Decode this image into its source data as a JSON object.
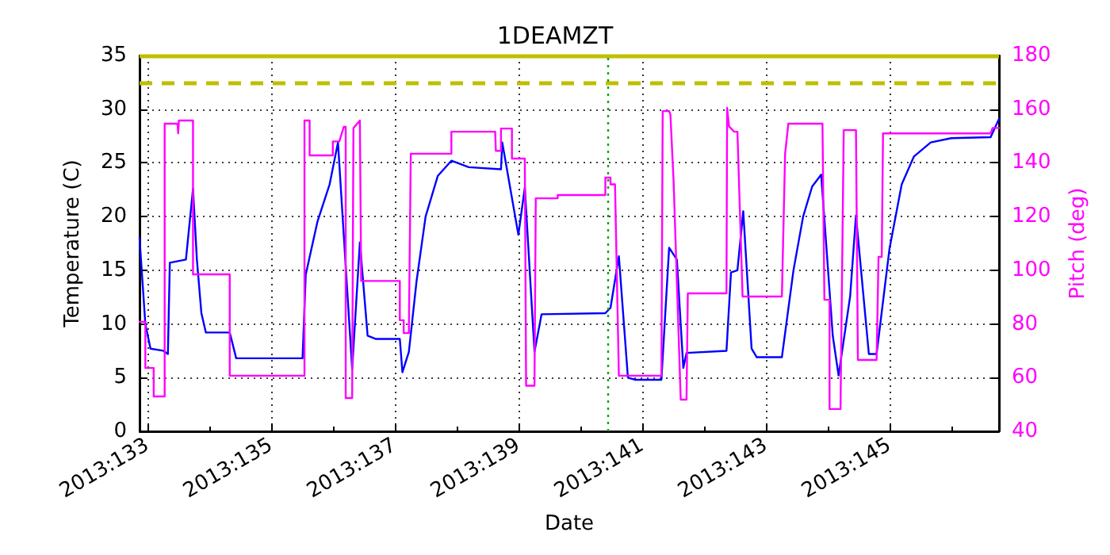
{
  "chart_data": {
    "type": "line",
    "title": "1DEAMZT",
    "xlabel": "Date",
    "ylabel": "Temperature (C)",
    "y2label": "Pitch (deg)",
    "xlim": [
      "2013-05-12T21:00",
      "2013-05-26T18:30"
    ],
    "xticks": [
      {
        "value": "2013-05-13",
        "label": "2013:133"
      },
      {
        "value": "2013-05-14",
        "label": null
      },
      {
        "value": "2013-05-15",
        "label": "2013:135"
      },
      {
        "value": "2013-05-16",
        "label": null
      },
      {
        "value": "2013-05-17",
        "label": "2013:137"
      },
      {
        "value": "2013-05-18",
        "label": null
      },
      {
        "value": "2013-05-19",
        "label": "2013:139"
      },
      {
        "value": "2013-05-20",
        "label": null
      },
      {
        "value": "2013-05-21",
        "label": "2013:141"
      },
      {
        "value": "2013-05-22",
        "label": null
      },
      {
        "value": "2013-05-23",
        "label": "2013:143"
      },
      {
        "value": "2013-05-24",
        "label": null
      },
      {
        "value": "2013-05-25",
        "label": "2013:145"
      },
      {
        "value": "2013-05-26",
        "label": null
      }
    ],
    "ylim": [
      0,
      35
    ],
    "yticks": [
      0,
      5,
      10,
      15,
      20,
      25,
      30,
      35
    ],
    "y2lim": [
      40,
      180
    ],
    "y2ticks": [
      40,
      60,
      80,
      100,
      120,
      140,
      160,
      180
    ],
    "grid": true,
    "marker": "none",
    "line_style": "solid",
    "ref_lines": [
      {
        "axis": "y",
        "value": 32.5,
        "color": "#bfbf00",
        "line_style": "dashed"
      },
      {
        "axis": "y",
        "value": 35,
        "color": "#bfbf00",
        "line_style": "solid"
      },
      {
        "axis": "x",
        "value": "2013-05-20T10:30",
        "color": "#00aa00",
        "line_style": "dotted"
      }
    ],
    "series": [
      {
        "color": "#0000ff",
        "axis": "y",
        "x": [
          "2013-05-12T21:00",
          "2013-05-12T23:15",
          "2013-05-13T01:15",
          "2013-05-13T06:15",
          "2013-05-13T08:00",
          "2013-05-13T08:45",
          "2013-05-13T15:00",
          "2013-05-13T17:45",
          "2013-05-13T19:15",
          "2013-05-13T21:00",
          "2013-05-13T22:45",
          "2013-05-14T08:00",
          "2013-05-14T10:30",
          "2013-05-15T12:15",
          "2013-05-15T13:30",
          "2013-05-15T18:00",
          "2013-05-15T22:45",
          "2013-05-16T02:00",
          "2013-05-16T07:30",
          "2013-05-16T10:30",
          "2013-05-16T13:30",
          "2013-05-16T16:45",
          "2013-05-17T02:00",
          "2013-05-17T03:00",
          "2013-05-17T05:30",
          "2013-05-17T08:30",
          "2013-05-17T12:00",
          "2013-05-17T16:45",
          "2013-05-17T22:00",
          "2013-05-18T04:45",
          "2013-05-18T17:15",
          "2013-05-18T17:45",
          "2013-05-19T00:00",
          "2013-05-19T02:30",
          "2013-05-19T06:15",
          "2013-05-19T09:00",
          "2013-05-20T09:45",
          "2013-05-20T11:45",
          "2013-05-20T15:00",
          "2013-05-20T18:30",
          "2013-05-20T21:30",
          "2013-05-21T07:30",
          "2013-05-21T10:30",
          "2013-05-21T13:30",
          "2013-05-21T16:00",
          "2013-05-21T17:15",
          "2013-05-22T08:45",
          "2013-05-22T10:30",
          "2013-05-22T13:00",
          "2013-05-22T15:15",
          "2013-05-22T18:30",
          "2013-05-22T20:30",
          "2013-05-23T06:15",
          "2013-05-23T10:45",
          "2013-05-23T14:30",
          "2013-05-23T18:00",
          "2013-05-23T21:30",
          "2013-05-24T02:00",
          "2013-05-24T04:15",
          "2013-05-24T08:45",
          "2013-05-24T11:00",
          "2013-05-24T16:00",
          "2013-05-24T19:00",
          "2013-05-25T00:00",
          "2013-05-25T04:45",
          "2013-05-25T09:30",
          "2013-05-25T16:00",
          "2013-05-26T00:00",
          "2013-05-26T15:15",
          "2013-05-26T18:30"
        ],
        "values": [
          18,
          10,
          7.7,
          7.5,
          7.2,
          15.7,
          16,
          22.6,
          16,
          11,
          9.2,
          9.2,
          6.8,
          6.8,
          14.6,
          19.5,
          23,
          26.9,
          5.8,
          17.6,
          8.9,
          8.6,
          8.6,
          5.5,
          7.4,
          14,
          20,
          23.8,
          25.2,
          24.6,
          24.4,
          26.9,
          18.3,
          22.7,
          7.4,
          10.9,
          11,
          11.5,
          16.3,
          5,
          4.8,
          4.8,
          17.1,
          16,
          5.9,
          7.3,
          7.5,
          14.8,
          15,
          20.5,
          7.7,
          6.9,
          6.9,
          15,
          20,
          22.8,
          23.9,
          8.9,
          5.2,
          12.6,
          20.1,
          7.2,
          7.2,
          17,
          23,
          25.6,
          26.9,
          27.3,
          27.4,
          29.1
        ]
      },
      {
        "color": "#ff00ff",
        "axis": "y2",
        "x": [
          "2013-05-12T21:00",
          "2013-05-12T23:15",
          "2013-05-12T23:15",
          "2013-05-13T02:30",
          "2013-05-13T02:30",
          "2013-05-13T06:45",
          "2013-05-13T06:45",
          "2013-05-13T11:45",
          "2013-05-13T12:00",
          "2013-05-13T12:15",
          "2013-05-13T17:45",
          "2013-05-13T17:45",
          "2013-05-14T08:00",
          "2013-05-14T08:00",
          "2013-05-15T13:00",
          "2013-05-15T13:00",
          "2013-05-15T15:00",
          "2013-05-15T15:00",
          "2013-05-16T00:00",
          "2013-05-16T00:00",
          "2013-05-16T02:30",
          "2013-05-16T04:15",
          "2013-05-16T05:00",
          "2013-05-16T05:00",
          "2013-05-16T07:30",
          "2013-05-16T08:00",
          "2013-05-16T10:30",
          "2013-05-16T11:00",
          "2013-05-17T02:00",
          "2013-05-17T02:00",
          "2013-05-17T03:30",
          "2013-05-17T03:30",
          "2013-05-17T05:30",
          "2013-05-17T06:15",
          "2013-05-17T22:00",
          "2013-05-17T22:00",
          "2013-05-18T15:00",
          "2013-05-18T15:15",
          "2013-05-18T17:15",
          "2013-05-18T17:15",
          "2013-05-18T21:30",
          "2013-05-18T21:30",
          "2013-05-19T02:30",
          "2013-05-19T03:00",
          "2013-05-19T06:15",
          "2013-05-19T06:45",
          "2013-05-19T15:15",
          "2013-05-19T15:15",
          "2013-05-20T09:45",
          "2013-05-20T09:45",
          "2013-05-20T11:45",
          "2013-05-20T11:45",
          "2013-05-20T13:30",
          "2013-05-20T15:00",
          "2013-05-21T07:30",
          "2013-05-21T08:00",
          "2013-05-21T10:30",
          "2013-05-21T11:00",
          "2013-05-21T12:15",
          "2013-05-21T15:00",
          "2013-05-21T17:15",
          "2013-05-21T17:45",
          "2013-05-22T08:45",
          "2013-05-22T09:00",
          "2013-05-22T09:45",
          "2013-05-22T11:45",
          "2013-05-22T13:00",
          "2013-05-22T15:00",
          "2013-05-23T06:15",
          "2013-05-23T07:30",
          "2013-05-23T08:45",
          "2013-05-23T22:00",
          "2013-05-23T22:45",
          "2013-05-24T00:45",
          "2013-05-24T00:45",
          "2013-05-24T05:00",
          "2013-05-24T06:15",
          "2013-05-24T11:00",
          "2013-05-24T11:45",
          "2013-05-24T19:00",
          "2013-05-24T19:45",
          "2013-05-24T21:00",
          "2013-05-24T21:30",
          "2013-05-26T15:15",
          "2013-05-26T16:00",
          "2013-05-26T18:30"
        ],
        "values": [
          80.8,
          80.8,
          63.6,
          63.6,
          53,
          53,
          154.6,
          154.6,
          151,
          155.8,
          155.8,
          98.5,
          98.5,
          60.7,
          60.7,
          155.8,
          155.8,
          142.8,
          142.8,
          148,
          148,
          153.4,
          153.4,
          52.4,
          52.4,
          153,
          155.8,
          96,
          96,
          81.4,
          81.4,
          76.6,
          76.6,
          143.4,
          143.4,
          151.6,
          151.6,
          144.5,
          144.5,
          152.8,
          152.8,
          141.6,
          141.6,
          57,
          57,
          126.8,
          126.8,
          128,
          128,
          134.5,
          134.5,
          132,
          132,
          60.7,
          60.7,
          159.3,
          159.3,
          158,
          132.7,
          51.8,
          51.8,
          91.4,
          91.4,
          160.5,
          153.6,
          151.6,
          151.6,
          90.2,
          90.2,
          143.4,
          154.6,
          154.6,
          89,
          89,
          48.3,
          48.3,
          152.2,
          152.2,
          66.6,
          66.6,
          105,
          105,
          151,
          151,
          153,
          153
        ]
      }
    ]
  }
}
